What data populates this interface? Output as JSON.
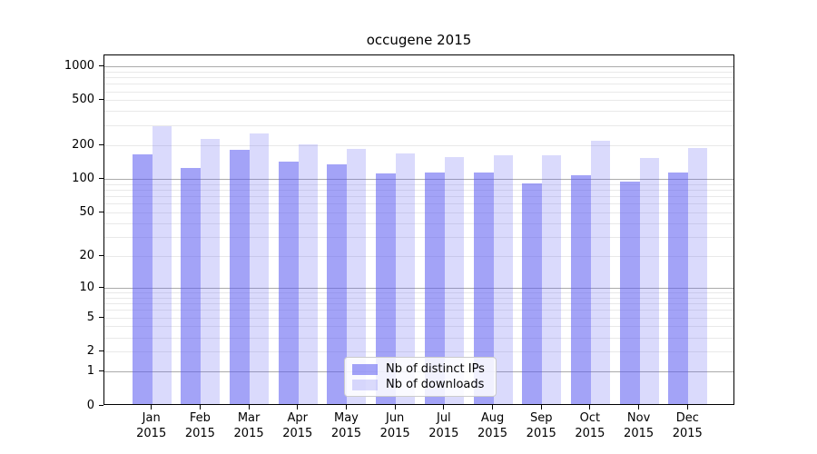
{
  "title": "occugene 2015",
  "chart_data": {
    "type": "bar",
    "title": "occugene 2015",
    "xlabel": "",
    "ylabel": "",
    "yscale": "log1p",
    "ylim": [
      0,
      1260
    ],
    "yticks": [
      0,
      1,
      2,
      5,
      10,
      20,
      50,
      100,
      200,
      500,
      1000
    ],
    "grid": {
      "on": true,
      "major_color": "#ababab",
      "minor_color": "#e9e9e9"
    },
    "categories": [
      "Jan 2015",
      "Feb 2015",
      "Mar 2015",
      "Apr 2015",
      "May 2015",
      "Jun 2015",
      "Jul 2015",
      "Aug 2015",
      "Sep 2015",
      "Oct 2015",
      "Nov 2015",
      "Dec 2015"
    ],
    "series": [
      {
        "name": "Nb of distinct IPs",
        "color": "rgba(88,88,240,0.55)",
        "values": [
          161,
          122,
          177,
          139,
          131,
          109,
          111,
          111,
          89,
          104,
          92,
          111
        ]
      },
      {
        "name": "Nb of downloads",
        "color": "rgba(88,88,240,0.22)",
        "values": [
          289,
          219,
          245,
          199,
          180,
          164,
          153,
          157,
          158,
          212,
          149,
          183
        ]
      }
    ],
    "legend_position": "lower center"
  },
  "legend": {
    "background": "rgba(255,255,255,0.85)",
    "border_color": "#cccccc"
  }
}
